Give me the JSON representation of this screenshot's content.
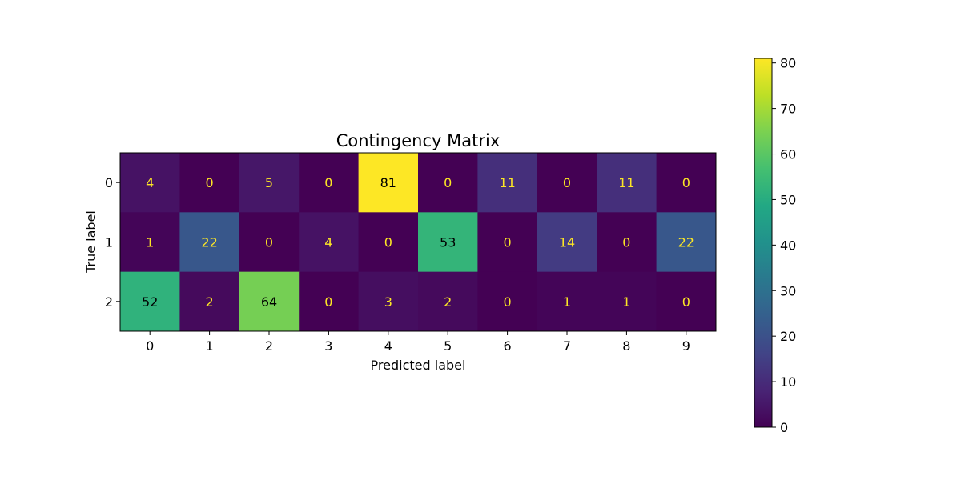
{
  "chart_data": {
    "type": "heatmap",
    "title": "Contingency Matrix",
    "xlabel": "Predicted label",
    "ylabel": "True label",
    "x_categories": [
      "0",
      "1",
      "2",
      "3",
      "4",
      "5",
      "6",
      "7",
      "8",
      "9"
    ],
    "y_categories": [
      "0",
      "1",
      "2"
    ],
    "values": [
      [
        4,
        0,
        5,
        0,
        81,
        0,
        11,
        0,
        11,
        0
      ],
      [
        1,
        22,
        0,
        4,
        0,
        53,
        0,
        14,
        0,
        22
      ],
      [
        52,
        2,
        64,
        0,
        3,
        2,
        0,
        1,
        1,
        0
      ]
    ],
    "colormap": "viridis",
    "value_range": [
      0,
      81
    ],
    "colorbar": {
      "ticks": [
        0,
        10,
        20,
        30,
        40,
        50,
        60,
        70,
        80
      ]
    },
    "annotation_colors": {
      "on_dark": "#fde725",
      "on_light": "#000000"
    }
  }
}
